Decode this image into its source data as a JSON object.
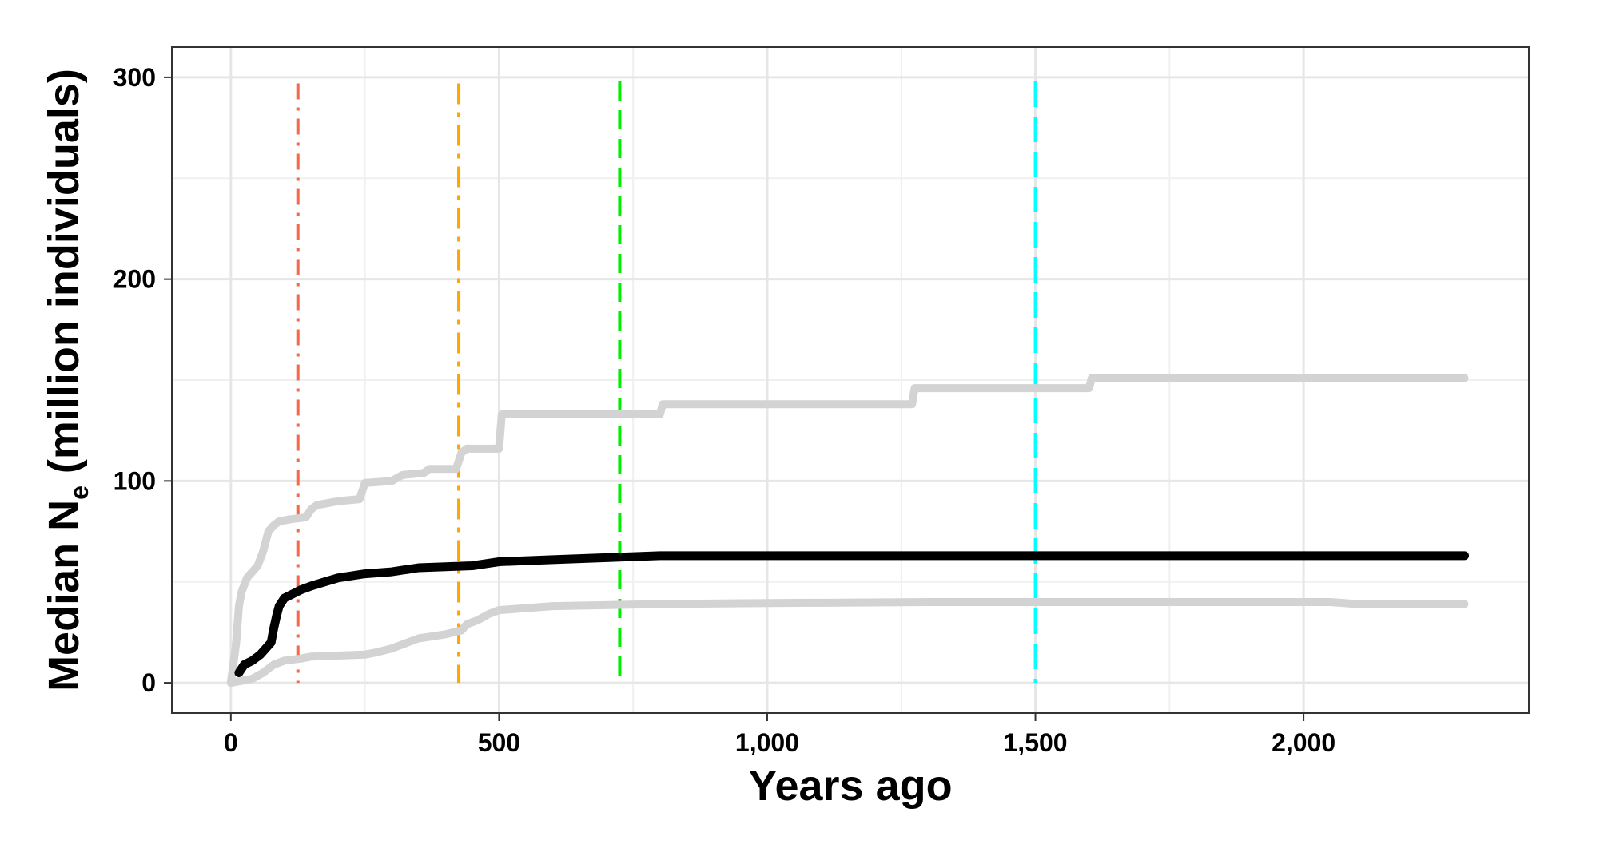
{
  "chart_data": {
    "type": "line",
    "title": "",
    "xlabel": "Years ago",
    "ylabel": "Median Ne (million individuals)",
    "ylabel_parts": {
      "pre": "Median N",
      "sub": "e",
      "post": " (million individuals)"
    },
    "xlim": [
      -110,
      2420
    ],
    "ylim": [
      -15,
      315
    ],
    "x_ticks": [
      0,
      500,
      1000,
      1500,
      2000
    ],
    "x_tick_labels": [
      "0",
      "500",
      "1,000",
      "1,500",
      "2,000"
    ],
    "y_ticks": [
      0,
      100,
      200,
      300
    ],
    "y_tick_labels": [
      "0",
      "100",
      "200",
      "300"
    ],
    "grid": true,
    "series": [
      {
        "color": "#d3d3d3",
        "points": [
          [
            0,
            0
          ],
          [
            5,
            10
          ],
          [
            10,
            20
          ],
          [
            15,
            38
          ],
          [
            20,
            45
          ],
          [
            30,
            52
          ],
          [
            40,
            55
          ],
          [
            50,
            58
          ],
          [
            60,
            65
          ],
          [
            70,
            75
          ],
          [
            80,
            78
          ],
          [
            90,
            80
          ],
          [
            110,
            81
          ],
          [
            140,
            82
          ],
          [
            150,
            86
          ],
          [
            160,
            88
          ],
          [
            180,
            89
          ],
          [
            200,
            90
          ],
          [
            240,
            91
          ],
          [
            250,
            99
          ],
          [
            300,
            100
          ],
          [
            320,
            103
          ],
          [
            360,
            104
          ],
          [
            370,
            106
          ],
          [
            420,
            106
          ],
          [
            430,
            114
          ],
          [
            440,
            116
          ],
          [
            500,
            116
          ],
          [
            505,
            133
          ],
          [
            800,
            133
          ],
          [
            805,
            138
          ],
          [
            1270,
            138
          ],
          [
            1275,
            146
          ],
          [
            1600,
            146
          ],
          [
            1605,
            151
          ],
          [
            2300,
            151
          ]
        ]
      },
      {
        "color": "#000000",
        "points": [
          [
            15,
            5
          ],
          [
            25,
            9
          ],
          [
            40,
            11
          ],
          [
            55,
            14
          ],
          [
            65,
            17
          ],
          [
            75,
            20
          ],
          [
            80,
            27
          ],
          [
            85,
            33
          ],
          [
            90,
            38
          ],
          [
            100,
            42
          ],
          [
            115,
            44
          ],
          [
            130,
            46
          ],
          [
            150,
            48
          ],
          [
            175,
            50
          ],
          [
            200,
            52
          ],
          [
            250,
            54
          ],
          [
            300,
            55
          ],
          [
            350,
            57
          ],
          [
            400,
            57.5
          ],
          [
            450,
            58
          ],
          [
            500,
            60
          ],
          [
            600,
            61
          ],
          [
            700,
            62
          ],
          [
            800,
            63
          ],
          [
            2300,
            63
          ]
        ]
      },
      {
        "color": "#d3d3d3",
        "points": [
          [
            0,
            0
          ],
          [
            20,
            1
          ],
          [
            40,
            2
          ],
          [
            60,
            5
          ],
          [
            80,
            9
          ],
          [
            100,
            11
          ],
          [
            130,
            12
          ],
          [
            150,
            13
          ],
          [
            200,
            13.5
          ],
          [
            250,
            14
          ],
          [
            270,
            15
          ],
          [
            300,
            17
          ],
          [
            330,
            20
          ],
          [
            350,
            22
          ],
          [
            400,
            24
          ],
          [
            430,
            26
          ],
          [
            440,
            29
          ],
          [
            460,
            31
          ],
          [
            480,
            34
          ],
          [
            500,
            36
          ],
          [
            550,
            37
          ],
          [
            600,
            38
          ],
          [
            800,
            39
          ],
          [
            1000,
            39.5
          ],
          [
            1300,
            40
          ],
          [
            2050,
            40
          ],
          [
            2100,
            39
          ],
          [
            2300,
            39
          ]
        ]
      }
    ],
    "vlines": [
      {
        "x": 125,
        "color": "#f4694b",
        "dash": "20,10,4,10",
        "y_top": 297
      },
      {
        "x": 425,
        "color": "#ffa500",
        "dash": "26,10,6,10",
        "y_top": 297
      },
      {
        "x": 725,
        "color": "#00ee00",
        "dash": "24,12",
        "y_top": 298
      },
      {
        "x": 1500,
        "color": "#00ffff",
        "dash": "32,12",
        "y_top": 298
      }
    ]
  }
}
